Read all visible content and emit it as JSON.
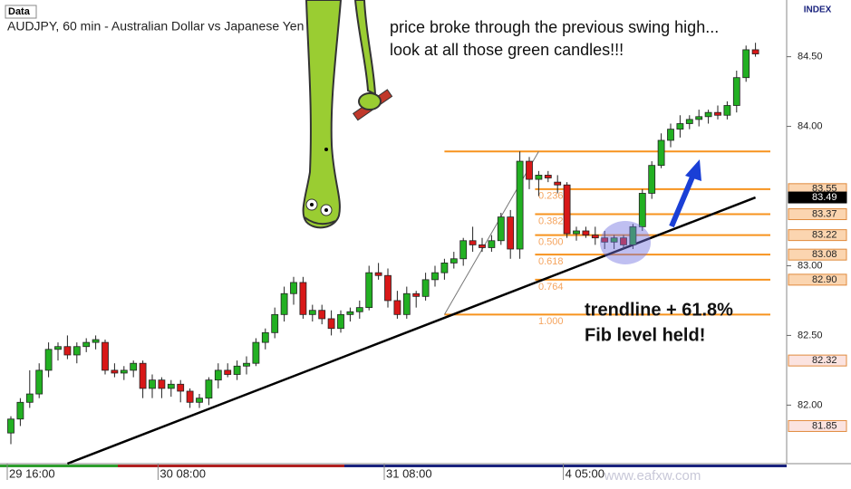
{
  "chart_data": {
    "type": "candlestick",
    "title": "AUDJPY, 60 min - Australian Dollar vs Japanese Yen",
    "data_label": "Data",
    "index_label": "INDEX",
    "watermark": "www.eafxw.com",
    "annotations": [
      "price broke through the previous swing high...",
      "look at all those green candles!!!",
      "trendline + 61.8%",
      "Fib level held!"
    ],
    "categories": [
      "29 16:00",
      null,
      null,
      null,
      null,
      null,
      null,
      null,
      null,
      null,
      null,
      null,
      null,
      null,
      null,
      null,
      "30 08:00",
      null,
      null,
      null,
      null,
      null,
      null,
      null,
      null,
      null,
      null,
      null,
      null,
      null,
      null,
      null,
      null,
      null,
      null,
      null,
      null,
      null,
      null,
      null,
      "31 08:00",
      null,
      null,
      null,
      null,
      null,
      null,
      null,
      null,
      null,
      null,
      null,
      null,
      null,
      null,
      null,
      null,
      null,
      null,
      "4 05:00",
      null,
      null,
      null,
      null,
      null,
      null,
      null,
      null,
      null,
      null,
      null,
      null,
      null,
      null,
      null,
      null,
      null,
      null,
      null,
      null
    ],
    "open": [
      81.8,
      81.9,
      82.02,
      82.08,
      82.25,
      82.4,
      82.42,
      82.36,
      82.42,
      82.45,
      82.45,
      82.25,
      82.23,
      82.25,
      82.3,
      82.12,
      82.18,
      82.12,
      82.15,
      82.1,
      82.02,
      82.05,
      82.18,
      82.25,
      82.22,
      82.28,
      82.3,
      82.45,
      82.52,
      82.65,
      82.8,
      82.88,
      82.65,
      82.68,
      82.62,
      82.55,
      82.65,
      82.67,
      82.7,
      82.95,
      82.93,
      82.75,
      82.65,
      82.8,
      82.78,
      82.9,
      82.95,
      83.02,
      83.05,
      83.18,
      83.15,
      83.13,
      83.18,
      83.35,
      83.12,
      83.75,
      83.62,
      83.65,
      83.6,
      83.58,
      83.23,
      83.25,
      83.22,
      83.2,
      83.17,
      83.2,
      83.15,
      83.28,
      83.52,
      83.72,
      83.9,
      83.98,
      84.02,
      84.05,
      84.07,
      84.1,
      84.08,
      84.15,
      84.35,
      84.55
    ],
    "high": [
      81.92,
      82.05,
      82.25,
      82.3,
      82.45,
      82.45,
      82.5,
      82.45,
      82.48,
      82.5,
      82.47,
      82.3,
      82.28,
      82.32,
      82.32,
      82.22,
      82.2,
      82.18,
      82.18,
      82.12,
      82.08,
      82.2,
      82.3,
      82.3,
      82.32,
      82.35,
      82.48,
      82.55,
      82.7,
      82.85,
      82.92,
      82.92,
      82.72,
      82.72,
      82.68,
      82.68,
      82.7,
      82.75,
      83.0,
      83.02,
      82.98,
      82.82,
      82.85,
      82.82,
      82.95,
      83.0,
      83.05,
      83.1,
      83.2,
      83.28,
      83.2,
      83.22,
      83.38,
      83.4,
      83.82,
      83.78,
      83.68,
      83.68,
      83.65,
      83.6,
      83.28,
      83.28,
      83.28,
      83.25,
      83.22,
      83.22,
      83.3,
      83.55,
      83.75,
      83.95,
      84.02,
      84.08,
      84.08,
      84.12,
      84.12,
      84.15,
      84.18,
      84.4,
      84.58,
      84.6
    ],
    "low": [
      81.72,
      81.85,
      81.98,
      82.05,
      82.2,
      82.32,
      82.33,
      82.3,
      82.38,
      82.4,
      82.22,
      82.2,
      82.18,
      82.2,
      82.05,
      82.05,
      82.05,
      82.06,
      82.02,
      81.98,
      81.98,
      82.0,
      82.12,
      82.2,
      82.18,
      82.22,
      82.28,
      82.4,
      82.48,
      82.6,
      82.72,
      82.62,
      82.6,
      82.58,
      82.5,
      82.52,
      82.6,
      82.62,
      82.68,
      82.9,
      82.7,
      82.62,
      82.62,
      82.7,
      82.75,
      82.85,
      82.9,
      82.98,
      83.0,
      83.1,
      83.1,
      83.1,
      83.15,
      83.05,
      83.05,
      83.55,
      83.5,
      83.6,
      83.52,
      83.2,
      83.18,
      83.2,
      83.15,
      83.12,
      83.12,
      83.12,
      83.12,
      83.25,
      83.48,
      83.7,
      83.85,
      83.92,
      83.98,
      84.0,
      84.02,
      84.05,
      84.05,
      84.1,
      84.32,
      84.5
    ],
    "close": [
      81.9,
      82.02,
      82.08,
      82.25,
      82.4,
      82.42,
      82.36,
      82.42,
      82.45,
      82.47,
      82.25,
      82.23,
      82.25,
      82.3,
      82.12,
      82.18,
      82.12,
      82.15,
      82.1,
      82.02,
      82.05,
      82.18,
      82.25,
      82.22,
      82.28,
      82.3,
      82.45,
      82.52,
      82.65,
      82.8,
      82.88,
      82.65,
      82.68,
      82.62,
      82.55,
      82.65,
      82.67,
      82.7,
      82.95,
      82.93,
      82.75,
      82.65,
      82.8,
      82.78,
      82.9,
      82.95,
      83.02,
      83.05,
      83.18,
      83.15,
      83.13,
      83.18,
      83.35,
      83.12,
      83.75,
      83.62,
      83.65,
      83.63,
      83.58,
      83.23,
      83.25,
      83.22,
      83.2,
      83.17,
      83.2,
      83.15,
      83.28,
      83.52,
      83.72,
      83.9,
      83.98,
      84.02,
      84.05,
      84.07,
      84.1,
      84.08,
      84.15,
      84.35,
      84.55,
      84.52
    ],
    "up_color": "#22b022",
    "down_color": "#d81818",
    "ylim": [
      81.58,
      84.79
    ],
    "yticks": [
      {
        "value": 84.5,
        "label": "84.50"
      },
      {
        "value": 84,
        "label": "84.00"
      },
      {
        "value": 83,
        "label": "83.00"
      },
      {
        "value": 82.5,
        "label": "82.50"
      },
      {
        "value": 82,
        "label": "82.00"
      }
    ],
    "price_boxes": [
      {
        "value": 83.55,
        "label": "83.55",
        "color": "#fbd5b0"
      },
      {
        "value": 83.49,
        "label": "83.49",
        "color": "#000000"
      },
      {
        "value": 83.37,
        "label": "83.37",
        "color": "#fbd5b0"
      },
      {
        "value": 83.22,
        "label": "83.22",
        "color": "#fbd5b0"
      },
      {
        "value": 83.08,
        "label": "83.08",
        "color": "#fbd5b0"
      },
      {
        "value": 82.9,
        "label": "82.90",
        "color": "#fbd5b0"
      },
      {
        "value": 82.32,
        "label": "82.32",
        "color": "#fbe3e0"
      },
      {
        "value": 81.85,
        "label": "81.85",
        "color": "#fbe3e0"
      }
    ],
    "fib": {
      "start": 46,
      "end": 56,
      "color": "#f7931e",
      "levels": [
        {
          "value": 83.82
        },
        {
          "label": "0.236",
          "value": 83.55
        },
        {
          "label": "0.382",
          "value": 83.37
        },
        {
          "label": "0.500",
          "value": 83.22
        },
        {
          "label": "0.618",
          "value": 83.08
        },
        {
          "label": "0.764",
          "value": 82.9
        },
        {
          "label": "1.000",
          "value": 82.65
        }
      ]
    },
    "trendline": {
      "x": [
        6,
        79
      ],
      "y": [
        81.58,
        83.49
      ]
    }
  }
}
